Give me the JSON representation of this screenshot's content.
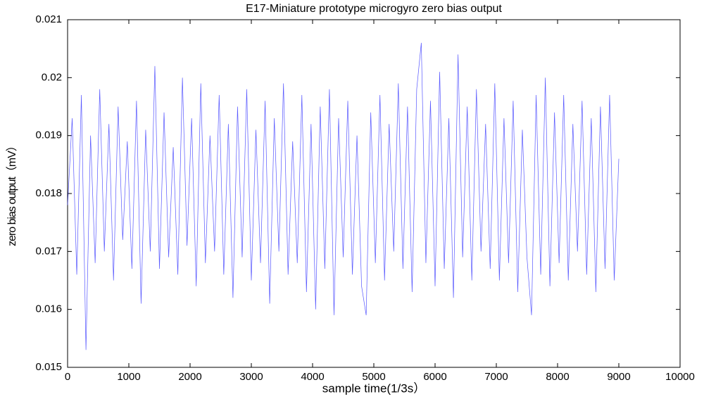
{
  "chart_data": {
    "type": "line",
    "title": "E17-Miniature prototype microgyro zero bias output",
    "x_label": "sample time(1/3s）",
    "y_label": "zero bias output（mV）",
    "xlim": [
      0,
      10000
    ],
    "ylim": [
      0.015,
      0.021
    ],
    "xticks": [
      0,
      1000,
      2000,
      3000,
      4000,
      5000,
      6000,
      7000,
      8000,
      9000,
      10000
    ],
    "yticks": [
      0.015,
      0.016,
      0.017,
      0.018,
      0.019,
      0.02,
      0.021
    ],
    "grid": false,
    "x": [
      0,
      75,
      150,
      225,
      300,
      375,
      450,
      525,
      600,
      675,
      750,
      825,
      900,
      975,
      1050,
      1125,
      1200,
      1275,
      1350,
      1425,
      1500,
      1575,
      1650,
      1725,
      1800,
      1875,
      1950,
      2025,
      2100,
      2175,
      2250,
      2325,
      2400,
      2475,
      2550,
      2625,
      2700,
      2775,
      2850,
      2925,
      3000,
      3075,
      3150,
      3225,
      3300,
      3375,
      3450,
      3525,
      3600,
      3675,
      3750,
      3825,
      3900,
      3975,
      4050,
      4125,
      4200,
      4275,
      4350,
      4425,
      4500,
      4575,
      4650,
      4725,
      4800,
      4875,
      4950,
      5025,
      5100,
      5175,
      5250,
      5325,
      5400,
      5475,
      5550,
      5625,
      5700,
      5775,
      5850,
      5925,
      6000,
      6075,
      6150,
      6225,
      6300,
      6375,
      6450,
      6525,
      6600,
      6675,
      6750,
      6825,
      6900,
      6975,
      7050,
      7125,
      7200,
      7275,
      7350,
      7425,
      7500,
      7575,
      7650,
      7725,
      7800,
      7875,
      7950,
      8025,
      8100,
      8175,
      8250,
      8325,
      8400,
      8475,
      8550,
      8625,
      8700,
      8775,
      8850,
      8925,
      9000
    ],
    "series": [
      {
        "name": "zero bias output",
        "color": "#3a3aff",
        "values": [
          0.0178,
          0.0193,
          0.0166,
          0.0197,
          0.0153,
          0.019,
          0.0168,
          0.0198,
          0.017,
          0.0192,
          0.0165,
          0.0195,
          0.0172,
          0.0189,
          0.0167,
          0.0196,
          0.0161,
          0.0191,
          0.017,
          0.0202,
          0.0167,
          0.0194,
          0.0169,
          0.0188,
          0.0166,
          0.02,
          0.0171,
          0.0193,
          0.0164,
          0.0199,
          0.0168,
          0.019,
          0.017,
          0.0197,
          0.0166,
          0.0192,
          0.0162,
          0.0195,
          0.0169,
          0.0198,
          0.0165,
          0.0191,
          0.0168,
          0.0196,
          0.0161,
          0.0193,
          0.017,
          0.0199,
          0.0166,
          0.0189,
          0.0168,
          0.0197,
          0.0163,
          0.0192,
          0.016,
          0.0195,
          0.0167,
          0.0198,
          0.0159,
          0.0193,
          0.0169,
          0.0196,
          0.0166,
          0.019,
          0.0164,
          0.0159,
          0.0194,
          0.0168,
          0.0197,
          0.0165,
          0.0192,
          0.017,
          0.0199,
          0.0167,
          0.0195,
          0.0163,
          0.0198,
          0.0206,
          0.0168,
          0.0196,
          0.0164,
          0.0201,
          0.0167,
          0.0193,
          0.0162,
          0.0204,
          0.0169,
          0.0195,
          0.0165,
          0.0198,
          0.017,
          0.0192,
          0.0167,
          0.0199,
          0.0165,
          0.0193,
          0.0168,
          0.0196,
          0.0163,
          0.0191,
          0.0169,
          0.0159,
          0.0197,
          0.0166,
          0.02,
          0.0164,
          0.0194,
          0.0168,
          0.0197,
          0.0165,
          0.0192,
          0.017,
          0.0196,
          0.0166,
          0.0193,
          0.0163,
          0.0195,
          0.0167,
          0.0197,
          0.0165,
          0.0186
        ]
      }
    ]
  }
}
